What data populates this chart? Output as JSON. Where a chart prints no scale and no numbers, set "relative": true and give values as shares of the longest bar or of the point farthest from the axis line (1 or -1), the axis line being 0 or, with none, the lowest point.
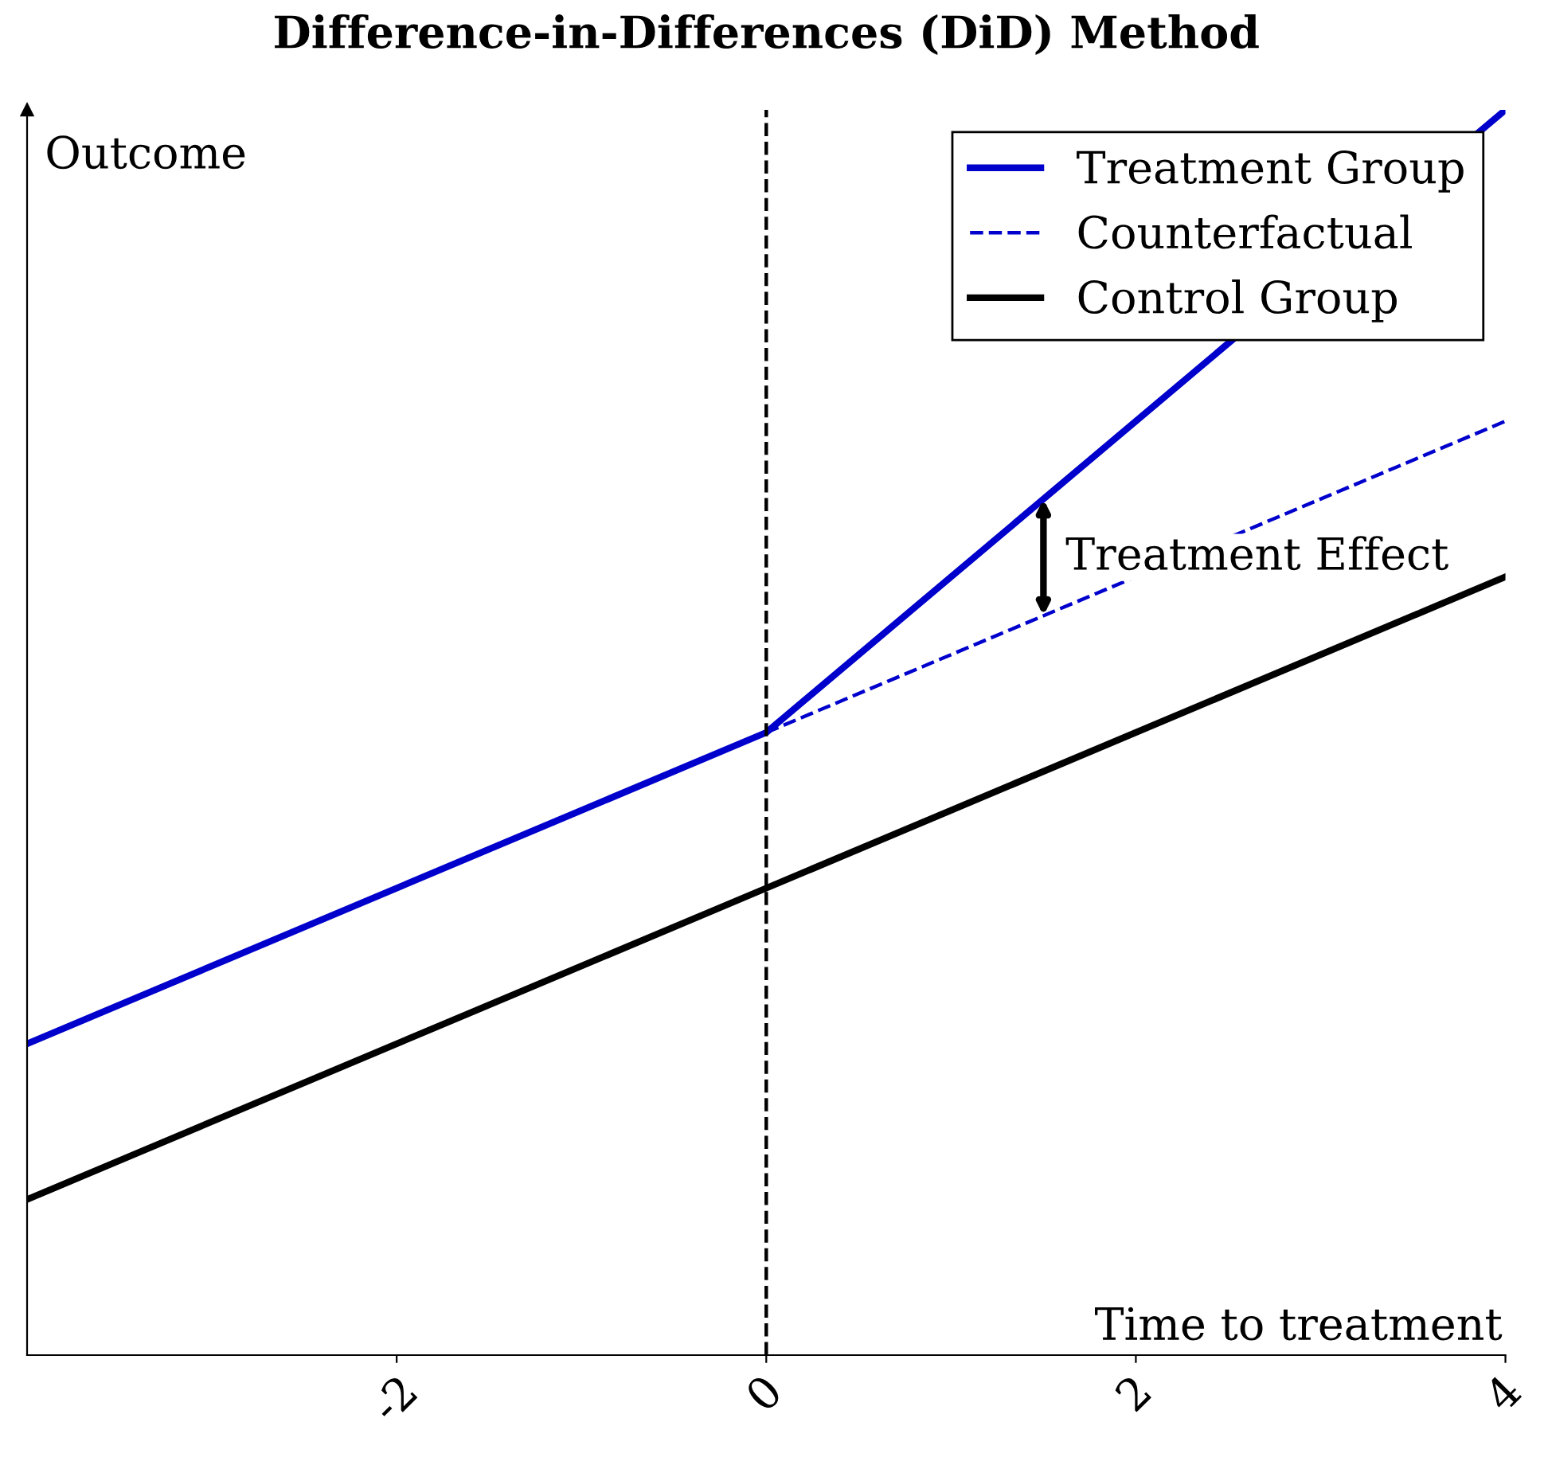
{
  "chart_data": {
    "type": "line",
    "title": "Difference-in-Differences (DiD) Method",
    "xlabel": "Time to treatment",
    "ylabel": "Outcome",
    "relative": true,
    "xlim": [
      -4,
      4
    ],
    "xticks": [
      -2,
      0,
      2,
      4
    ],
    "series": [
      {
        "name": "Treatment Group",
        "color": "#0000cc",
        "x": [
          -4,
          0,
          4
        ],
        "values": [
          0.25,
          0.5,
          1
        ],
        "line_style": "solid"
      },
      {
        "name": "Counterfactual",
        "color": "#0000cc",
        "x": [
          0,
          4
        ],
        "values": [
          0.5,
          0.75
        ],
        "line_style": "dashed"
      },
      {
        "name": "Control Group",
        "color": "#000000",
        "x": [
          -4,
          0,
          4
        ],
        "values": [
          0.125,
          0.375,
          0.625
        ],
        "line_style": "solid"
      }
    ],
    "ref_lines": [
      {
        "axis": "x",
        "value": 0,
        "color": "#000000",
        "line_style": "dashed"
      }
    ],
    "annotations": [
      {
        "text": "Treatment Effect",
        "x": 1.5,
        "y": 0.6875
      }
    ],
    "legend": "top right",
    "grid": false
  }
}
